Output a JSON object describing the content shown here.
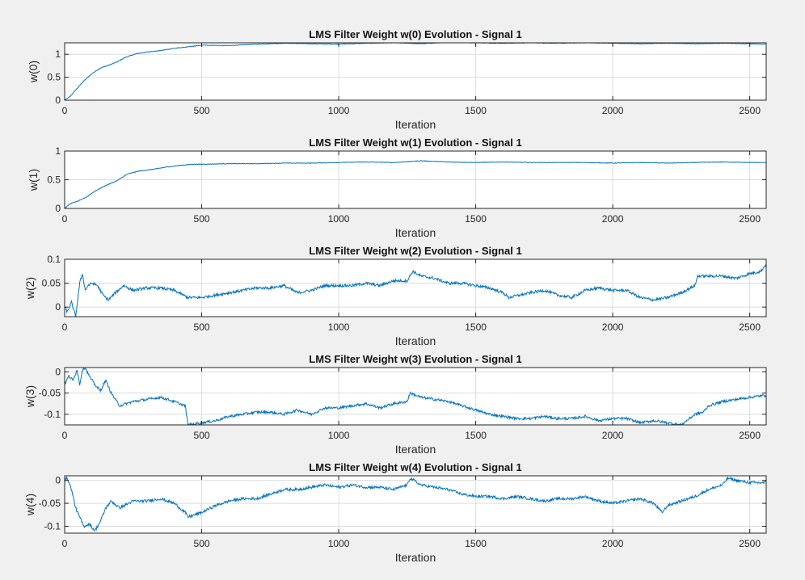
{
  "figure": {
    "background": "#f0f0f0",
    "axes_background": "#ffffff",
    "line_color": "#0072bd",
    "grid_color": "#dcdcdc"
  },
  "chart_data": [
    {
      "type": "line",
      "title": "LMS Filter Weight w(0) Evolution - Signal 1",
      "xlabel": "Iteration",
      "ylabel": "w(0)",
      "xlim": [
        0,
        2560
      ],
      "ylim": [
        0,
        1.25
      ],
      "xticks": [
        0,
        500,
        1000,
        1500,
        2000,
        2500
      ],
      "yticks": [
        0,
        0.5,
        1
      ],
      "ytick_labels": [
        "0",
        "0.5",
        "1"
      ],
      "grid": true,
      "series": [
        {
          "x": [
            0,
            20,
            40,
            70,
            100,
            130,
            160,
            190,
            220,
            260,
            300,
            350,
            400,
            450,
            500,
            600,
            700,
            800,
            900,
            1000,
            1100,
            1200,
            1300,
            1400,
            1500,
            1600,
            1700,
            1800,
            1900,
            2000,
            2100,
            2200,
            2300,
            2400,
            2500,
            2560
          ],
          "y": [
            0.0,
            0.08,
            0.22,
            0.42,
            0.58,
            0.7,
            0.76,
            0.83,
            0.93,
            1.01,
            1.05,
            1.08,
            1.13,
            1.16,
            1.2,
            1.19,
            1.22,
            1.24,
            1.23,
            1.22,
            1.24,
            1.25,
            1.23,
            1.26,
            1.25,
            1.24,
            1.25,
            1.24,
            1.25,
            1.24,
            1.23,
            1.24,
            1.23,
            1.24,
            1.23,
            1.22
          ],
          "noise": 0.006
        }
      ]
    },
    {
      "type": "line",
      "title": "LMS Filter Weight w(1) Evolution - Signal 1",
      "xlabel": "Iteration",
      "ylabel": "w(1)",
      "xlim": [
        0,
        2560
      ],
      "ylim": [
        0,
        1.0
      ],
      "xticks": [
        0,
        500,
        1000,
        1500,
        2000,
        2500
      ],
      "yticks": [
        0,
        0.5,
        1
      ],
      "ytick_labels": [
        "0",
        "0.5",
        "1"
      ],
      "grid": true,
      "series": [
        {
          "x": [
            0,
            20,
            50,
            80,
            110,
            150,
            190,
            230,
            270,
            320,
            370,
            420,
            470,
            500,
            600,
            700,
            800,
            900,
            1000,
            1100,
            1200,
            1300,
            1400,
            1500,
            1600,
            1700,
            1800,
            1900,
            2000,
            2100,
            2200,
            2300,
            2400,
            2500,
            2560
          ],
          "y": [
            0.0,
            0.08,
            0.13,
            0.2,
            0.3,
            0.4,
            0.48,
            0.6,
            0.65,
            0.68,
            0.72,
            0.75,
            0.77,
            0.77,
            0.78,
            0.78,
            0.79,
            0.79,
            0.8,
            0.81,
            0.8,
            0.83,
            0.81,
            0.8,
            0.81,
            0.8,
            0.8,
            0.8,
            0.79,
            0.8,
            0.79,
            0.8,
            0.81,
            0.8,
            0.8
          ],
          "noise": 0.005
        }
      ]
    },
    {
      "type": "line",
      "title": "LMS Filter Weight w(2) Evolution - Signal 1",
      "xlabel": "Iteration",
      "ylabel": "w(2)",
      "xlim": [
        0,
        2560
      ],
      "ylim": [
        -0.02,
        0.1
      ],
      "xticks": [
        0,
        500,
        1000,
        1500,
        2000,
        2500
      ],
      "yticks": [
        0,
        0.05,
        0.1
      ],
      "ytick_labels": [
        "0",
        "0.05",
        "0.1"
      ],
      "grid": true,
      "series": [
        {
          "x": [
            0,
            10,
            25,
            40,
            55,
            65,
            75,
            85,
            100,
            120,
            140,
            160,
            185,
            215,
            250,
            300,
            350,
            400,
            450,
            500,
            550,
            600,
            650,
            700,
            750,
            800,
            850,
            900,
            950,
            1000,
            1050,
            1100,
            1150,
            1200,
            1250,
            1270,
            1300,
            1350,
            1400,
            1450,
            1500,
            1550,
            1600,
            1620,
            1700,
            1750,
            1800,
            1850,
            1900,
            1950,
            2000,
            2050,
            2100,
            2150,
            2200,
            2250,
            2300,
            2310,
            2350,
            2400,
            2450,
            2500,
            2540,
            2560
          ],
          "y": [
            0.0,
            -0.01,
            0.01,
            -0.02,
            0.05,
            0.07,
            0.035,
            0.045,
            0.05,
            0.045,
            0.025,
            0.015,
            0.03,
            0.045,
            0.035,
            0.04,
            0.04,
            0.035,
            0.02,
            0.02,
            0.025,
            0.03,
            0.035,
            0.04,
            0.04,
            0.045,
            0.03,
            0.035,
            0.045,
            0.045,
            0.045,
            0.05,
            0.045,
            0.055,
            0.055,
            0.075,
            0.065,
            0.06,
            0.05,
            0.05,
            0.045,
            0.04,
            0.03,
            0.02,
            0.03,
            0.035,
            0.025,
            0.02,
            0.035,
            0.04,
            0.035,
            0.035,
            0.02,
            0.015,
            0.02,
            0.03,
            0.045,
            0.065,
            0.065,
            0.065,
            0.06,
            0.07,
            0.075,
            0.09
          ],
          "noise": 0.003
        }
      ]
    },
    {
      "type": "line",
      "title": "LMS Filter Weight w(3) Evolution - Signal 1",
      "xlabel": "Iteration",
      "ylabel": "w(3)",
      "xlim": [
        0,
        2560
      ],
      "ylim": [
        -0.125,
        0.01
      ],
      "xticks": [
        0,
        500,
        1000,
        1500,
        2000,
        2500
      ],
      "yticks": [
        -0.1,
        -0.05,
        0
      ],
      "ytick_labels": [
        "-0.1",
        "-0.05",
        "0"
      ],
      "grid": true,
      "series": [
        {
          "x": [
            0,
            15,
            30,
            45,
            55,
            65,
            75,
            90,
            110,
            130,
            150,
            170,
            200,
            250,
            300,
            350,
            400,
            440,
            450,
            500,
            550,
            600,
            650,
            700,
            750,
            800,
            850,
            900,
            950,
            1000,
            1050,
            1100,
            1150,
            1200,
            1250,
            1260,
            1300,
            1350,
            1400,
            1450,
            1500,
            1550,
            1600,
            1650,
            1700,
            1750,
            1800,
            1850,
            1900,
            1950,
            2000,
            2050,
            2100,
            2150,
            2200,
            2250,
            2300,
            2330,
            2350,
            2400,
            2450,
            2500,
            2560
          ],
          "y": [
            -0.03,
            -0.01,
            -0.02,
            0.005,
            -0.03,
            0.005,
            0.01,
            -0.01,
            -0.03,
            -0.045,
            -0.02,
            -0.05,
            -0.08,
            -0.07,
            -0.065,
            -0.06,
            -0.07,
            -0.08,
            -0.125,
            -0.12,
            -0.115,
            -0.105,
            -0.1,
            -0.095,
            -0.095,
            -0.1,
            -0.09,
            -0.1,
            -0.085,
            -0.085,
            -0.08,
            -0.075,
            -0.085,
            -0.075,
            -0.07,
            -0.05,
            -0.06,
            -0.065,
            -0.07,
            -0.08,
            -0.09,
            -0.1,
            -0.105,
            -0.11,
            -0.11,
            -0.105,
            -0.11,
            -0.11,
            -0.105,
            -0.115,
            -0.11,
            -0.11,
            -0.12,
            -0.115,
            -0.12,
            -0.125,
            -0.1,
            -0.095,
            -0.08,
            -0.07,
            -0.065,
            -0.06,
            -0.055
          ],
          "noise": 0.003
        }
      ]
    },
    {
      "type": "line",
      "title": "LMS Filter Weight w(4) Evolution - Signal 1",
      "xlabel": "Iteration",
      "ylabel": "w(4)",
      "xlim": [
        0,
        2560
      ],
      "ylim": [
        -0.115,
        0.01
      ],
      "xticks": [
        0,
        500,
        1000,
        1500,
        2000,
        2500
      ],
      "yticks": [
        -0.1,
        -0.05,
        0
      ],
      "ytick_labels": [
        "-0.1",
        "-0.05",
        "0"
      ],
      "grid": true,
      "series": [
        {
          "x": [
            0,
            10,
            25,
            40,
            55,
            70,
            90,
            110,
            130,
            150,
            170,
            200,
            250,
            300,
            350,
            400,
            440,
            450,
            500,
            550,
            600,
            650,
            700,
            750,
            800,
            850,
            900,
            950,
            1000,
            1050,
            1100,
            1150,
            1200,
            1250,
            1260,
            1300,
            1350,
            1400,
            1450,
            1500,
            1550,
            1600,
            1650,
            1700,
            1750,
            1800,
            1850,
            1900,
            1950,
            2000,
            2050,
            2100,
            2150,
            2180,
            2200,
            2250,
            2300,
            2350,
            2400,
            2420,
            2450,
            2500,
            2560
          ],
          "y": [
            0.0,
            0.005,
            -0.02,
            -0.06,
            -0.08,
            -0.1,
            -0.095,
            -0.11,
            -0.09,
            -0.06,
            -0.045,
            -0.06,
            -0.045,
            -0.045,
            -0.04,
            -0.05,
            -0.07,
            -0.08,
            -0.07,
            -0.055,
            -0.045,
            -0.04,
            -0.04,
            -0.03,
            -0.02,
            -0.02,
            -0.015,
            -0.01,
            -0.015,
            -0.01,
            -0.015,
            -0.015,
            -0.02,
            -0.01,
            0.005,
            -0.01,
            -0.015,
            -0.02,
            -0.03,
            -0.035,
            -0.035,
            -0.04,
            -0.035,
            -0.04,
            -0.045,
            -0.04,
            -0.04,
            -0.035,
            -0.045,
            -0.05,
            -0.045,
            -0.04,
            -0.05,
            -0.07,
            -0.055,
            -0.045,
            -0.035,
            -0.02,
            -0.01,
            0.005,
            0.0,
            -0.005,
            -0.005
          ],
          "noise": 0.003
        }
      ]
    }
  ]
}
